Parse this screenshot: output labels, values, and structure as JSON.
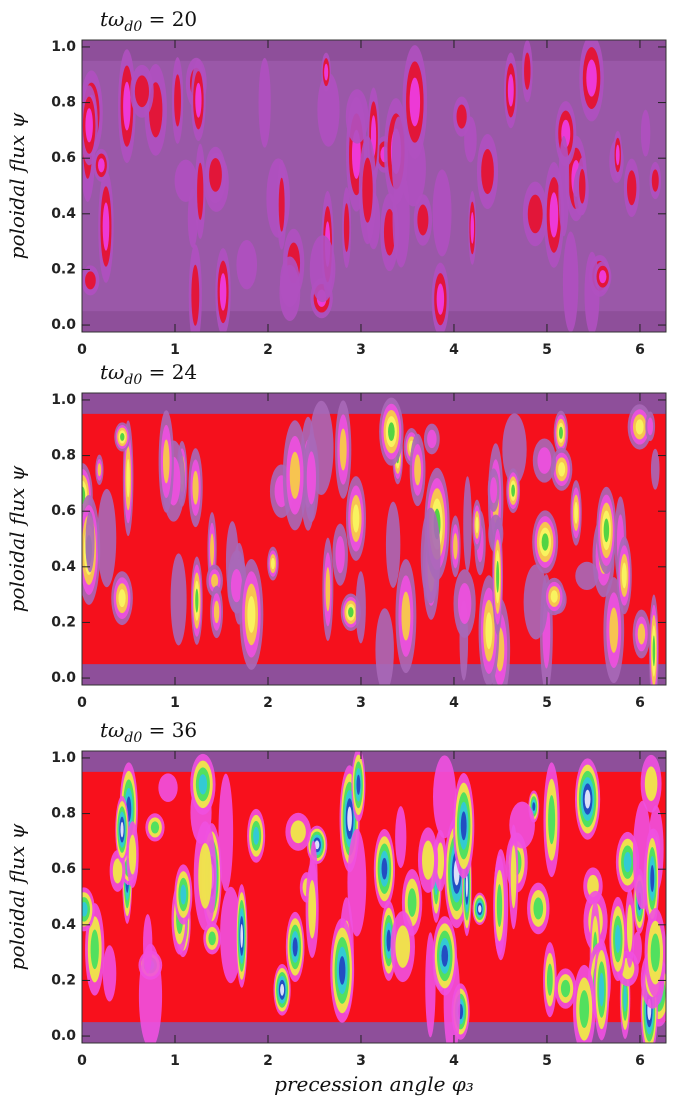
{
  "chart_data": [
    {
      "type": "heatmap",
      "title": {
        "main": "tω",
        "sub": "d0",
        "rest": " = 20"
      },
      "ylabel": "poloidal flux ψ",
      "xlim": [
        0,
        6.28
      ],
      "ylim": [
        -0.025,
        1.025
      ],
      "xticks": [
        0,
        1,
        2,
        3,
        4,
        5,
        6
      ],
      "yticks": [
        {
          "value": 0,
          "label": "0.0"
        },
        0.2,
        0.4,
        0.6,
        0.8,
        {
          "value": 1,
          "label": "1.0"
        }
      ],
      "colors": {
        "frame": "#8e4f9a",
        "field": "#9a58a8",
        "features": [
          "#b050c0",
          "#e8102a",
          "#ee3de8"
        ]
      }
    },
    {
      "type": "heatmap",
      "title": {
        "main": "tω",
        "sub": "d0",
        "rest": " = 24"
      },
      "ylabel": "poloidal flux ψ",
      "xlim": [
        0,
        6.28
      ],
      "ylim": [
        -0.025,
        1.025
      ],
      "xticks": [
        0,
        1,
        2,
        3,
        4,
        5,
        6
      ],
      "yticks": [
        {
          "value": 0,
          "label": "0.0"
        },
        0.2,
        0.4,
        0.6,
        0.8,
        {
          "value": 1,
          "label": "1.0"
        }
      ],
      "colors": {
        "frame": "#8e4f9a",
        "field": "#f5101c",
        "features": [
          "#a868b8",
          "#f050e0",
          "#f8d040",
          "#f8f860",
          "#40d040"
        ]
      }
    },
    {
      "type": "heatmap",
      "title": {
        "main": "tω",
        "sub": "d0",
        "rest": " = 36"
      },
      "ylabel": "poloidal flux ψ",
      "xlabel": "precession angle φ₃",
      "xlim": [
        0,
        6.28
      ],
      "ylim": [
        -0.025,
        1.025
      ],
      "xticks": [
        0,
        1,
        2,
        3,
        4,
        5,
        6
      ],
      "yticks": [
        {
          "value": 0,
          "label": "0.0"
        },
        0.2,
        0.4,
        0.6,
        0.8,
        {
          "value": 1,
          "label": "1.0"
        }
      ],
      "colors": {
        "frame": "#8e4f9a",
        "field": "#f8101c",
        "features": [
          "#f050e0",
          "#f0f040",
          "#40e060",
          "#30c8e0",
          "#2040c0",
          "#f0f0ff"
        ]
      }
    }
  ]
}
